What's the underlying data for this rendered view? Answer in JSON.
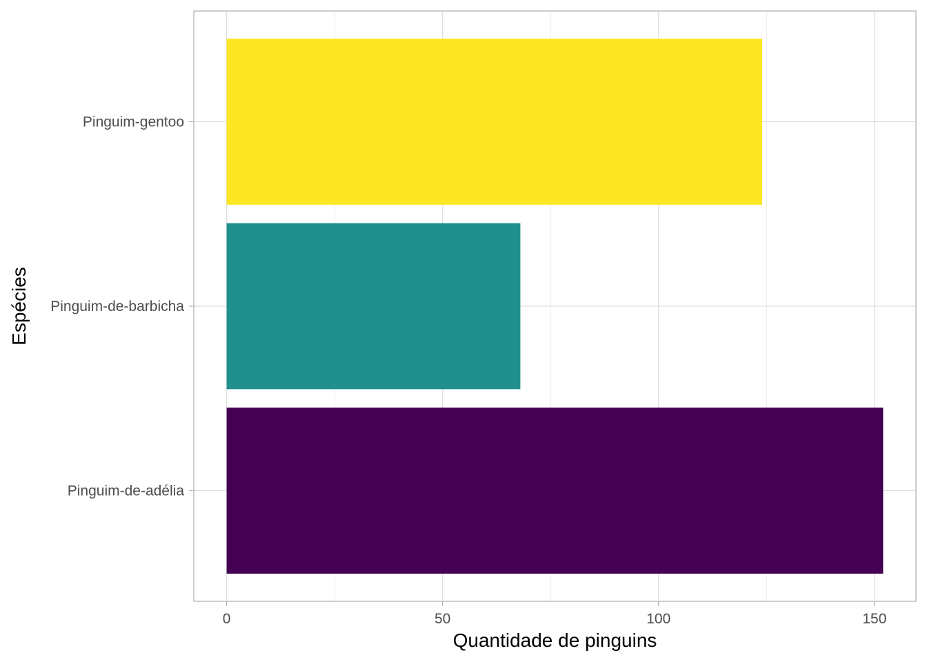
{
  "chart_data": {
    "type": "bar",
    "orientation": "horizontal",
    "categories": [
      "Pinguim-de-adélia",
      "Pinguim-de-barbicha",
      "Pinguim-gentoo"
    ],
    "values": [
      152,
      68,
      124
    ],
    "colors": [
      "#440154",
      "#21908C",
      "#FDE725"
    ],
    "xlabel": "Quantidade de pinguins",
    "ylabel": "Espécies",
    "xlim": [
      -7.6,
      159.6
    ],
    "xticks": [
      0,
      50,
      100,
      150
    ],
    "xtick_labels": [
      "0",
      "50",
      "100",
      "150"
    ],
    "grid": true,
    "legend": "none"
  }
}
